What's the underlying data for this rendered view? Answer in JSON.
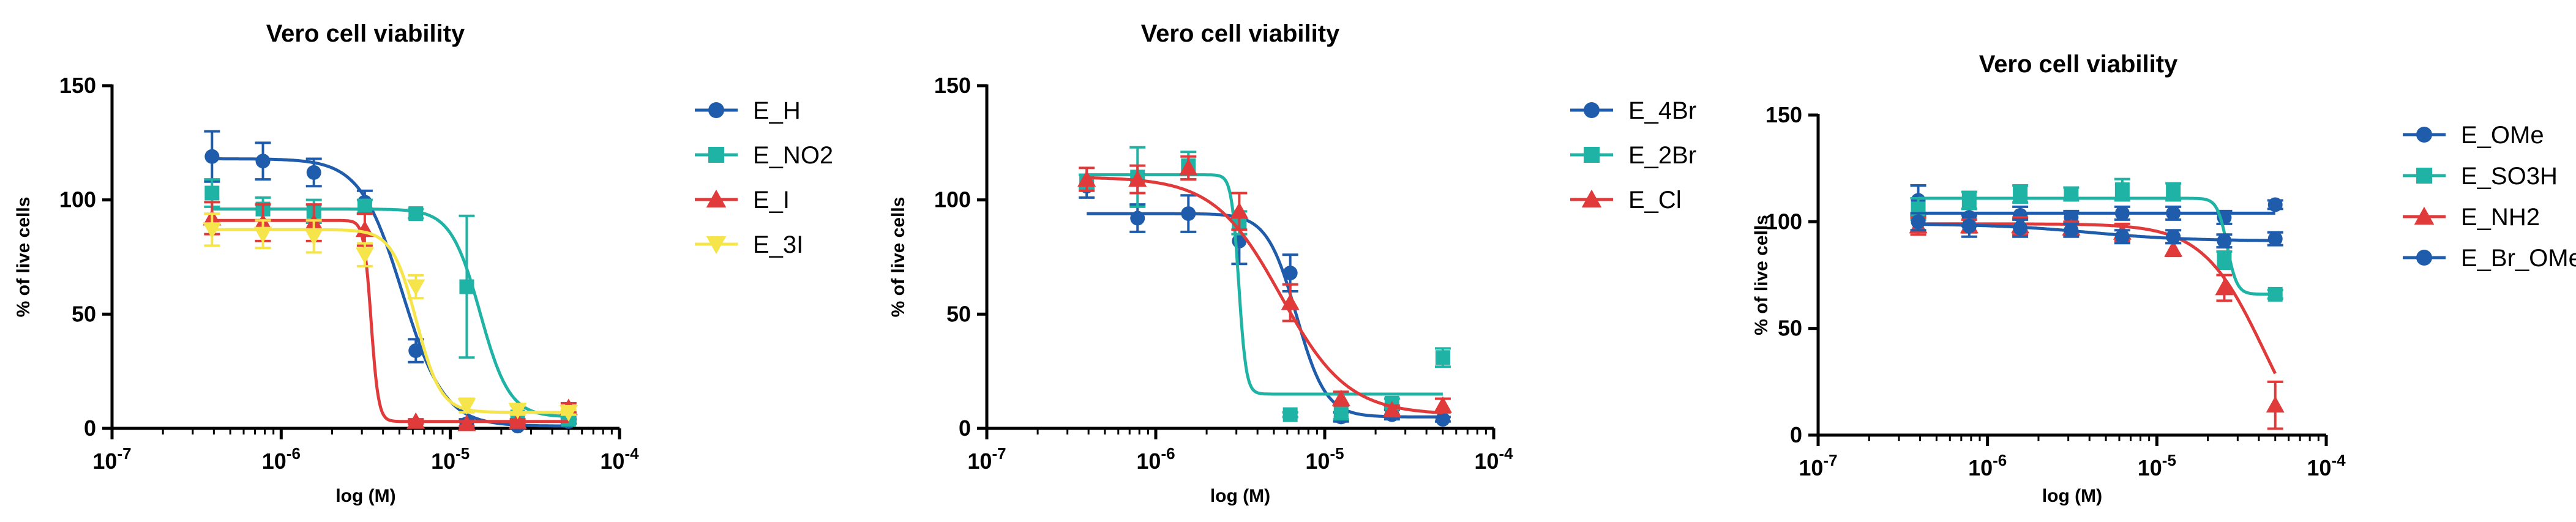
{
  "chart_data": [
    {
      "type": "scatter",
      "title": "Vero cell viability",
      "xlabel": "log (M)",
      "ylabel": "% of live cells",
      "xscale": "log",
      "xlim": [
        1e-07,
        0.0001
      ],
      "ylim": [
        0,
        150
      ],
      "yticks": [
        "0",
        "50",
        "100",
        "150"
      ],
      "xticks": [
        {
          "base": "10",
          "exp": "-7"
        },
        {
          "base": "10",
          "exp": "-6"
        },
        {
          "base": "10",
          "exp": "-5"
        },
        {
          "base": "10",
          "exp": "-4"
        }
      ],
      "legend_position": "right",
      "series": [
        {
          "name": "E_H",
          "color": "#1f5cab",
          "marker": "circle",
          "x": [
            3.9e-07,
            7.8e-07,
            1.56e-06,
            3.12e-06,
            6.25e-06,
            1.25e-05,
            2.5e-05,
            5e-05
          ],
          "y": [
            119,
            117,
            112,
            99,
            34,
            2,
            1,
            3
          ],
          "err": [
            11,
            8,
            6,
            5,
            5,
            2,
            1,
            1
          ],
          "fit": {
            "top": 118,
            "bottom": 1,
            "ec50": 5.2e-06,
            "hill": 3.5
          }
        },
        {
          "name": "E_NO2",
          "color": "#1fb3a6",
          "marker": "square",
          "x": [
            3.9e-07,
            7.8e-07,
            1.56e-06,
            3.12e-06,
            6.25e-06,
            1.25e-05,
            2.5e-05,
            5e-05
          ],
          "y": [
            103,
            96,
            95,
            97,
            94,
            62,
            5,
            4
          ],
          "err": [
            6,
            5,
            5,
            3,
            2,
            31,
            2,
            1
          ],
          "fit": {
            "top": 96,
            "bottom": 5,
            "ec50": 1.5e-05,
            "hill": 5
          }
        },
        {
          "name": "E_I",
          "color": "#e03a3a",
          "marker": "triangle",
          "x": [
            3.9e-07,
            7.8e-07,
            1.56e-06,
            3.12e-06,
            6.25e-06,
            1.25e-05,
            2.5e-05,
            5e-05
          ],
          "y": [
            92,
            90,
            90,
            87,
            3,
            2,
            3,
            9
          ],
          "err": [
            7,
            8,
            8,
            7,
            1,
            1,
            1,
            2
          ],
          "fit": {
            "top": 91,
            "bottom": 3,
            "ec50": 3.4e-06,
            "hill": 20
          }
        },
        {
          "name": "E_3I",
          "color": "#f5e54a",
          "marker": "triangle-down",
          "x": [
            3.9e-07,
            7.8e-07,
            1.56e-06,
            3.12e-06,
            6.25e-06,
            1.25e-05,
            2.5e-05,
            5e-05
          ],
          "y": [
            87,
            85,
            84,
            76,
            62,
            10,
            8,
            7
          ],
          "err": [
            7,
            6,
            7,
            5,
            5,
            3,
            2,
            1
          ],
          "fit": {
            "top": 87,
            "bottom": 7,
            "ec50": 6.3e-06,
            "hill": 6
          }
        }
      ]
    },
    {
      "type": "scatter",
      "title": "Vero cell viability",
      "xlabel": "log (M)",
      "ylabel": "% of live cells",
      "xscale": "log",
      "xlim": [
        1e-07,
        0.0001
      ],
      "ylim": [
        0,
        150
      ],
      "yticks": [
        "0",
        "50",
        "100",
        "150"
      ],
      "xticks": [
        {
          "base": "10",
          "exp": "-7"
        },
        {
          "base": "10",
          "exp": "-6"
        },
        {
          "base": "10",
          "exp": "-5"
        },
        {
          "base": "10",
          "exp": "-4"
        }
      ],
      "legend_position": "right",
      "series": [
        {
          "name": "E_4Br",
          "color": "#1f5cab",
          "marker": "circle",
          "x": [
            3.9e-07,
            7.8e-07,
            1.56e-06,
            3.12e-06,
            6.25e-06,
            1.25e-05,
            2.5e-05,
            5e-05
          ],
          "y": [
            106,
            92,
            94,
            82,
            68,
            5,
            6,
            4
          ],
          "err": [
            5,
            6,
            8,
            10,
            8,
            2,
            2,
            1
          ],
          "fit": {
            "top": 94,
            "bottom": 5,
            "ec50": 6.8e-06,
            "hill": 5
          }
        },
        {
          "name": "E_2Br",
          "color": "#1fb3a6",
          "marker": "square",
          "x": [
            3.9e-07,
            7.8e-07,
            1.56e-06,
            3.12e-06,
            6.25e-06,
            1.25e-05,
            2.5e-05,
            5e-05
          ],
          "y": [
            108,
            110,
            115,
            90,
            6,
            7,
            11,
            31
          ],
          "err": [
            3,
            13,
            6,
            5,
            1,
            3,
            2,
            4
          ],
          "fit": {
            "top": 111,
            "bottom": 15,
            "ec50": 3.1e-06,
            "hill": 20
          }
        },
        {
          "name": "E_Cl",
          "color": "#e03a3a",
          "marker": "triangle",
          "x": [
            3.9e-07,
            7.8e-07,
            1.56e-06,
            3.12e-06,
            6.25e-06,
            1.25e-05,
            2.5e-05,
            5e-05
          ],
          "y": [
            109,
            109,
            114,
            95,
            55,
            13,
            8,
            10
          ],
          "err": [
            5,
            6,
            5,
            8,
            8,
            3,
            2,
            3
          ],
          "fit": {
            "top": 110,
            "bottom": 6,
            "ec50": 5.5e-06,
            "hill": 2.2
          }
        }
      ]
    },
    {
      "type": "scatter",
      "title": "Vero cell viability",
      "xlabel": "log (M)",
      "ylabel": "% of live cells",
      "xscale": "log",
      "xlim": [
        1e-07,
        0.0001
      ],
      "ylim": [
        0,
        150
      ],
      "yticks": [
        "0",
        "50",
        "100",
        "150"
      ],
      "xticks": [
        {
          "base": "10",
          "exp": "-7"
        },
        {
          "base": "10",
          "exp": "-6"
        },
        {
          "base": "10",
          "exp": "-5"
        },
        {
          "base": "10",
          "exp": "-4"
        }
      ],
      "legend_position": "right",
      "series": [
        {
          "name": "E_OMe",
          "color": "#1f5cab",
          "marker": "circle",
          "x": [
            3.9e-07,
            7.8e-07,
            1.56e-06,
            3.12e-06,
            6.25e-06,
            1.25e-05,
            2.5e-05,
            5e-05
          ],
          "y": [
            110,
            102,
            103,
            102,
            104,
            104,
            102,
            108
          ],
          "err": [
            7,
            4,
            4,
            3,
            3,
            3,
            3,
            2
          ],
          "fit": {
            "top": 104,
            "bottom": 104,
            "ec50": 1e-05,
            "hill": 1
          }
        },
        {
          "name": "E_SO3H",
          "color": "#1fb3a6",
          "marker": "square",
          "x": [
            3.9e-07,
            7.8e-07,
            1.56e-06,
            3.12e-06,
            6.25e-06,
            1.25e-05,
            2.5e-05,
            5e-05
          ],
          "y": [
            106,
            110,
            113,
            113,
            115,
            114,
            82,
            66
          ],
          "err": [
            5,
            4,
            4,
            3,
            5,
            4,
            4,
            2
          ],
          "fit": {
            "top": 111,
            "bottom": 66,
            "ec50": 2.6e-05,
            "hill": 15
          }
        },
        {
          "name": "E_NH2",
          "color": "#e03a3a",
          "marker": "triangle",
          "x": [
            3.9e-07,
            7.8e-07,
            1.56e-06,
            3.12e-06,
            6.25e-06,
            1.25e-05,
            2.5e-05,
            5e-05
          ],
          "y": [
            98,
            98,
            98,
            97,
            95,
            87,
            69,
            14
          ],
          "err": [
            4,
            3,
            4,
            3,
            4,
            3,
            6,
            11
          ],
          "fit": {
            "top": 99,
            "bottom": -20,
            "ec50": 4.3e-05,
            "hill": 2.4
          }
        },
        {
          "name": "E_Br_OMe",
          "color": "#1f5cab",
          "marker": "circle",
          "x": [
            3.9e-07,
            7.8e-07,
            1.56e-06,
            3.12e-06,
            6.25e-06,
            1.25e-05,
            2.5e-05,
            5e-05
          ],
          "y": [
            100,
            98,
            97,
            96,
            93,
            93,
            91,
            92
          ],
          "err": [
            4,
            5,
            4,
            3,
            3,
            3,
            3,
            3
          ],
          "fit": {
            "top": 99,
            "bottom": 91,
            "ec50": 4e-06,
            "hill": 1.5
          }
        }
      ]
    }
  ]
}
